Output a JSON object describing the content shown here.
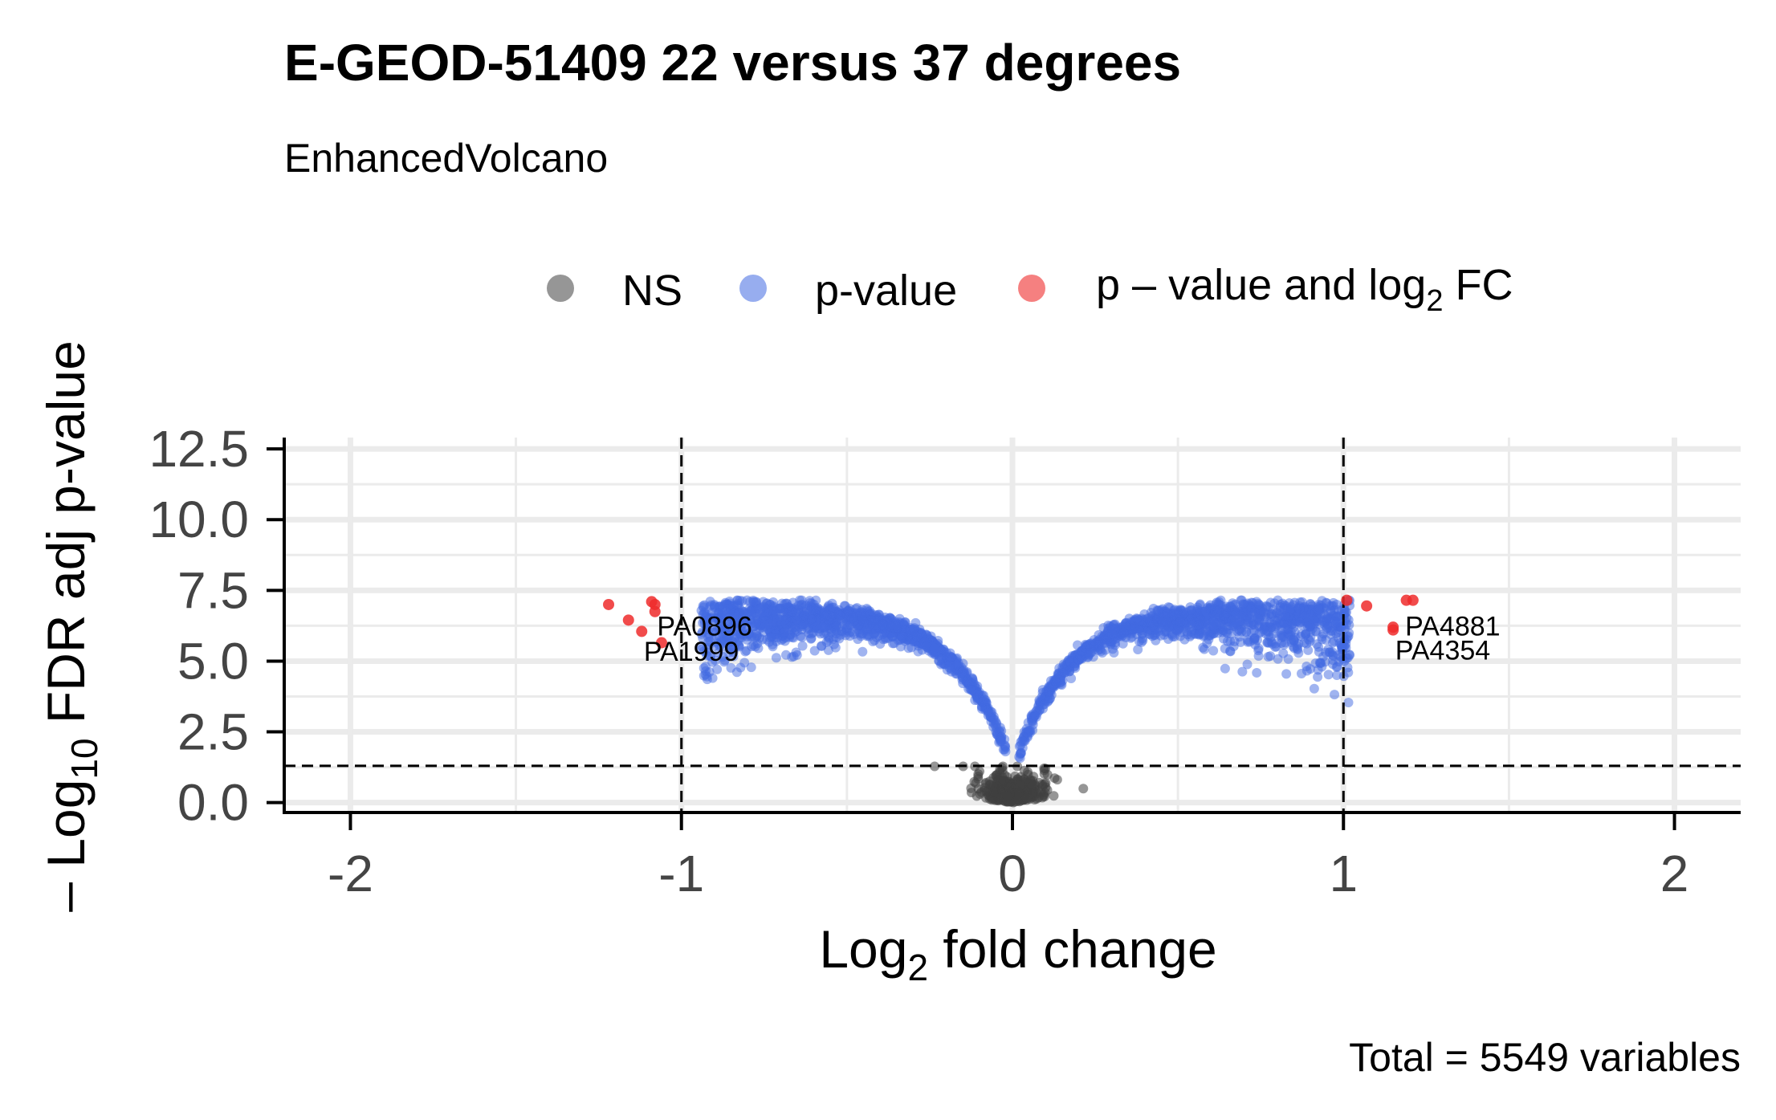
{
  "chart_data": {
    "type": "scatter",
    "title": "E-GEOD-51409 22 versus 37 degrees",
    "subtitle": "EnhancedVolcano",
    "xlabel_main": "Log",
    "xlabel_sub": "2",
    "xlabel_rest": " fold change",
    "ylabel_prefix": "– Log",
    "ylabel_sub": "10",
    "ylabel_rest": " FDR adj p-value",
    "caption": "Total = 5549 variables",
    "xlim": [
      -2.2,
      2.2
    ],
    "ylim": [
      -0.35,
      12.9
    ],
    "x_ticks": [
      -2,
      -1,
      0,
      1,
      2
    ],
    "x_tick_labels": [
      "-2",
      "-1",
      "0",
      "1",
      "2"
    ],
    "y_ticks": [
      0,
      2.5,
      5,
      7.5,
      10,
      12.5
    ],
    "y_tick_labels": [
      "0.0",
      "2.5",
      "5.0",
      "7.5",
      "10.0",
      "12.5"
    ],
    "fc_cutoff": 1,
    "p_cutoff_neglog10": 1.3,
    "legend": {
      "position": "top",
      "items": [
        {
          "label": "NS",
          "color": "#404040"
        },
        {
          "label": "p-value",
          "color": "#4169E1"
        },
        {
          "label_main": "p – value and log",
          "label_sub": "2",
          "label_rest": " FC",
          "color": "#EE2C2C"
        }
      ]
    },
    "colors": {
      "ns": "#404040",
      "p": "#4169E1",
      "pfc": "#EE2C2C"
    },
    "significant_points": [
      {
        "x": -1.22,
        "y": 7.0
      },
      {
        "x": -1.16,
        "y": 6.45
      },
      {
        "x": -1.12,
        "y": 6.05
      },
      {
        "x": -1.09,
        "y": 7.1
      },
      {
        "x": -1.08,
        "y": 7.0
      },
      {
        "x": -1.08,
        "y": 6.75
      },
      {
        "x": -1.06,
        "y": 5.65
      },
      {
        "x": 1.01,
        "y": 7.15
      },
      {
        "x": 1.07,
        "y": 6.95
      },
      {
        "x": 1.15,
        "y": 6.2
      },
      {
        "x": 1.15,
        "y": 6.1
      },
      {
        "x": 1.19,
        "y": 7.15
      },
      {
        "x": 1.21,
        "y": 7.15
      }
    ],
    "labels": [
      {
        "text": "PA0896",
        "x": -0.93,
        "y": 6.25
      },
      {
        "text": "PA1999",
        "x": -0.97,
        "y": 5.35
      },
      {
        "text": "PA4881",
        "x": 1.33,
        "y": 6.25
      },
      {
        "text": "PA4354",
        "x": 1.3,
        "y": 5.4
      }
    ]
  }
}
